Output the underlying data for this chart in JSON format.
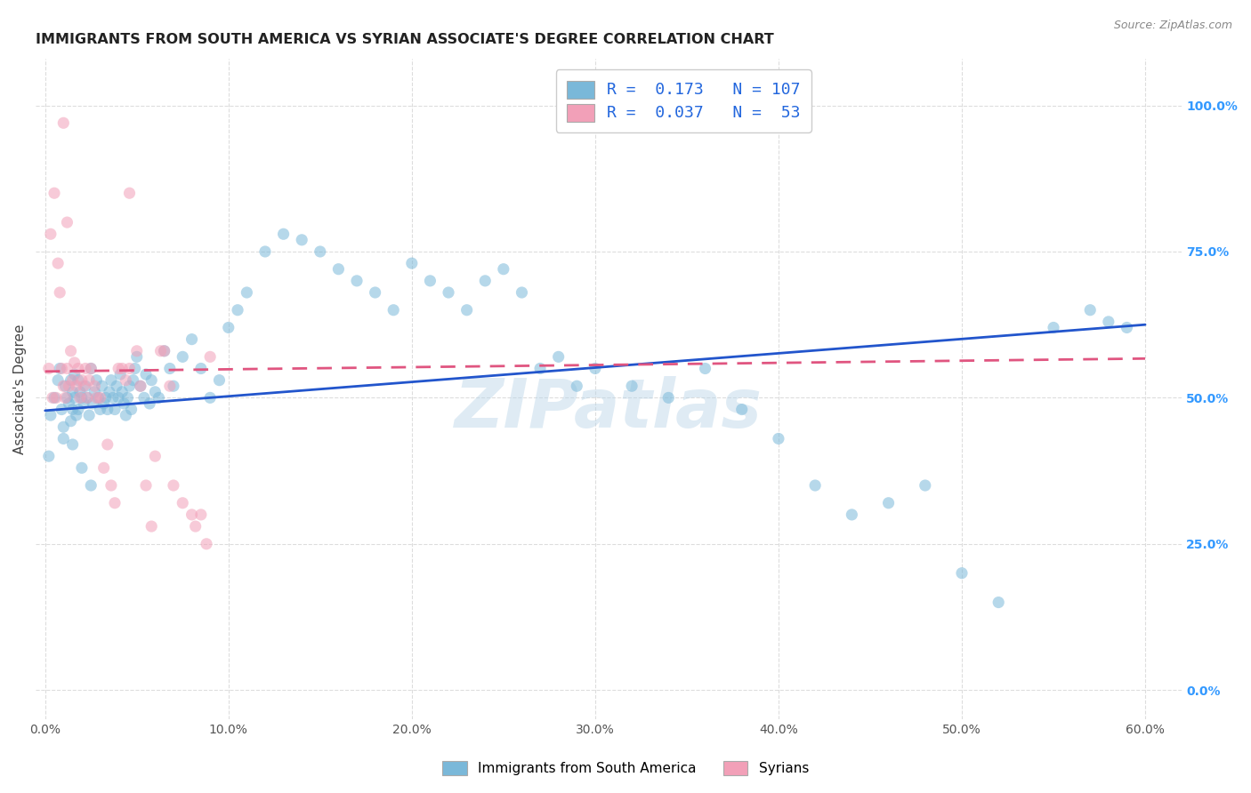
{
  "title": "IMMIGRANTS FROM SOUTH AMERICA VS SYRIAN ASSOCIATE'S DEGREE CORRELATION CHART",
  "source": "Source: ZipAtlas.com",
  "xlabel_ticks": [
    "0.0%",
    "10.0%",
    "20.0%",
    "30.0%",
    "40.0%",
    "50.0%",
    "60.0%"
  ],
  "xlabel_vals": [
    0.0,
    0.1,
    0.2,
    0.3,
    0.4,
    0.5,
    0.6
  ],
  "ylabel_ticks": [
    "0.0%",
    "25.0%",
    "50.0%",
    "75.0%",
    "100.0%"
  ],
  "ylabel_vals": [
    0.0,
    0.25,
    0.5,
    0.75,
    1.0
  ],
  "xlim": [
    -0.005,
    0.62
  ],
  "ylim": [
    -0.05,
    1.08
  ],
  "ylabel": "Associate's Degree",
  "legend_label1": "Immigrants from South America",
  "legend_label2": "Syrians",
  "R1": 0.173,
  "N1": 107,
  "R2": 0.037,
  "N2": 53,
  "color_blue": "#7ab8d9",
  "color_pink": "#f2a0b8",
  "watermark": "ZIPatlas",
  "blue_scatter_x": [
    0.003,
    0.005,
    0.007,
    0.008,
    0.009,
    0.01,
    0.011,
    0.012,
    0.013,
    0.014,
    0.014,
    0.015,
    0.015,
    0.016,
    0.016,
    0.017,
    0.018,
    0.018,
    0.019,
    0.02,
    0.021,
    0.022,
    0.023,
    0.024,
    0.025,
    0.026,
    0.027,
    0.028,
    0.029,
    0.03,
    0.031,
    0.032,
    0.033,
    0.034,
    0.035,
    0.036,
    0.037,
    0.038,
    0.039,
    0.04,
    0.041,
    0.042,
    0.043,
    0.044,
    0.045,
    0.046,
    0.047,
    0.048,
    0.049,
    0.05,
    0.052,
    0.054,
    0.055,
    0.057,
    0.058,
    0.06,
    0.062,
    0.065,
    0.068,
    0.07,
    0.075,
    0.08,
    0.085,
    0.09,
    0.095,
    0.1,
    0.105,
    0.11,
    0.12,
    0.13,
    0.14,
    0.15,
    0.16,
    0.17,
    0.18,
    0.19,
    0.2,
    0.21,
    0.22,
    0.23,
    0.24,
    0.25,
    0.26,
    0.27,
    0.28,
    0.29,
    0.3,
    0.32,
    0.34,
    0.36,
    0.38,
    0.4,
    0.42,
    0.44,
    0.46,
    0.48,
    0.5,
    0.52,
    0.55,
    0.57,
    0.58,
    0.59,
    0.002,
    0.01,
    0.015,
    0.02,
    0.025
  ],
  "blue_scatter_y": [
    0.47,
    0.5,
    0.53,
    0.55,
    0.48,
    0.45,
    0.52,
    0.5,
    0.49,
    0.53,
    0.46,
    0.51,
    0.48,
    0.54,
    0.5,
    0.47,
    0.53,
    0.48,
    0.51,
    0.5,
    0.49,
    0.52,
    0.5,
    0.47,
    0.55,
    0.49,
    0.51,
    0.53,
    0.5,
    0.48,
    0.52,
    0.49,
    0.5,
    0.48,
    0.51,
    0.53,
    0.5,
    0.48,
    0.52,
    0.5,
    0.54,
    0.51,
    0.49,
    0.47,
    0.5,
    0.52,
    0.48,
    0.53,
    0.55,
    0.57,
    0.52,
    0.5,
    0.54,
    0.49,
    0.53,
    0.51,
    0.5,
    0.58,
    0.55,
    0.52,
    0.57,
    0.6,
    0.55,
    0.5,
    0.53,
    0.62,
    0.65,
    0.68,
    0.75,
    0.78,
    0.77,
    0.75,
    0.72,
    0.7,
    0.68,
    0.65,
    0.73,
    0.7,
    0.68,
    0.65,
    0.7,
    0.72,
    0.68,
    0.55,
    0.57,
    0.52,
    0.55,
    0.52,
    0.5,
    0.55,
    0.48,
    0.43,
    0.35,
    0.3,
    0.32,
    0.35,
    0.2,
    0.15,
    0.62,
    0.65,
    0.63,
    0.62,
    0.4,
    0.43,
    0.42,
    0.38,
    0.35
  ],
  "pink_scatter_x": [
    0.002,
    0.003,
    0.004,
    0.005,
    0.006,
    0.007,
    0.008,
    0.009,
    0.01,
    0.011,
    0.012,
    0.013,
    0.014,
    0.015,
    0.016,
    0.017,
    0.018,
    0.019,
    0.02,
    0.021,
    0.022,
    0.023,
    0.024,
    0.025,
    0.027,
    0.028,
    0.03,
    0.032,
    0.034,
    0.036,
    0.038,
    0.04,
    0.042,
    0.044,
    0.046,
    0.05,
    0.052,
    0.055,
    0.058,
    0.06,
    0.063,
    0.065,
    0.068,
    0.07,
    0.075,
    0.08,
    0.082,
    0.085,
    0.088,
    0.09,
    0.01,
    0.012,
    0.046
  ],
  "pink_scatter_y": [
    0.55,
    0.78,
    0.5,
    0.85,
    0.5,
    0.73,
    0.68,
    0.55,
    0.52,
    0.5,
    0.55,
    0.52,
    0.58,
    0.53,
    0.56,
    0.52,
    0.55,
    0.5,
    0.53,
    0.52,
    0.55,
    0.5,
    0.53,
    0.55,
    0.52,
    0.5,
    0.5,
    0.38,
    0.42,
    0.35,
    0.32,
    0.55,
    0.55,
    0.53,
    0.55,
    0.58,
    0.52,
    0.35,
    0.28,
    0.4,
    0.58,
    0.58,
    0.52,
    0.35,
    0.32,
    0.3,
    0.28,
    0.3,
    0.25,
    0.57,
    0.97,
    0.8,
    0.85
  ],
  "trend_blue_x0": 0.0,
  "trend_blue_x1": 0.6,
  "trend_blue_y0": 0.478,
  "trend_blue_y1": 0.625,
  "trend_pink_x0": 0.0,
  "trend_pink_x1": 0.6,
  "trend_pink_y0": 0.545,
  "trend_pink_y1": 0.567,
  "background_color": "#ffffff",
  "grid_color": "#dddddd",
  "title_fontsize": 11.5,
  "axis_label_fontsize": 11,
  "tick_fontsize": 10,
  "scatter_size": 90,
  "scatter_alpha": 0.55,
  "trend_blue_color": "#2255cc",
  "trend_pink_color": "#e05580",
  "right_tick_color": "#3399ff"
}
